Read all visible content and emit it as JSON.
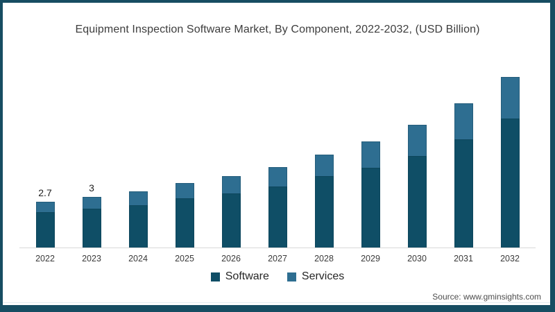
{
  "title": "Equipment Inspection Software Market, By Component, 2022-2032, (USD Billion)",
  "source": "Source: www.gminsights.com",
  "frame": {
    "border_color": "#174d62",
    "background": "#ffffff"
  },
  "legend": [
    {
      "label": "Software",
      "color": "#0f4e66"
    },
    {
      "label": "Services",
      "color": "#2e6e91"
    }
  ],
  "chart_data": {
    "type": "bar",
    "stacked": true,
    "title": "Equipment Inspection Software Market, By Component, 2022-2032, (USD Billion)",
    "unit": "USD Billion",
    "xlabel": "",
    "ylabel": "",
    "grid": false,
    "legend_position": "bottom",
    "categories": [
      "2022",
      "2023",
      "2024",
      "2025",
      "2026",
      "2027",
      "2028",
      "2029",
      "2030",
      "2031",
      "2032"
    ],
    "series": [
      {
        "name": "Software",
        "color": "#0f4e66",
        "values": [
          2.1,
          2.3,
          2.5,
          2.9,
          3.2,
          3.6,
          4.2,
          4.7,
          5.4,
          6.4,
          7.6
        ]
      },
      {
        "name": "Services",
        "color": "#2e6e91",
        "values": [
          0.6,
          0.7,
          0.8,
          0.9,
          1.0,
          1.15,
          1.3,
          1.55,
          1.85,
          2.1,
          2.45
        ]
      }
    ],
    "totals": [
      2.7,
      3.0,
      3.3,
      3.8,
      4.2,
      4.75,
      5.5,
      6.25,
      7.25,
      8.5,
      10.05
    ],
    "data_labels": [
      "2.7",
      "3",
      "",
      "",
      "",
      "",
      "",
      "",
      "",
      "",
      ""
    ],
    "ylim": [
      0,
      10.5
    ]
  }
}
